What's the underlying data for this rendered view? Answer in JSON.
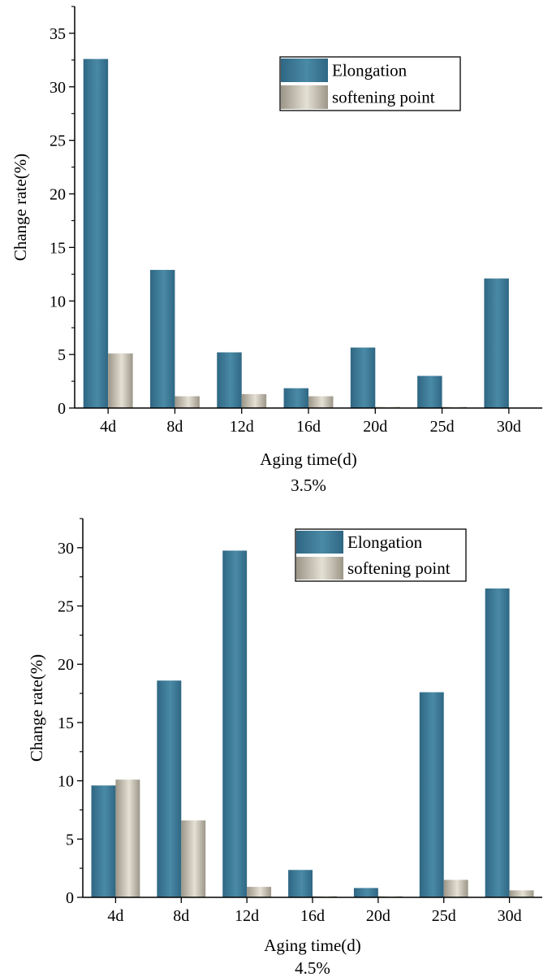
{
  "chart_data": [
    {
      "type": "bar",
      "caption": "3.5%",
      "xlabel": "Aging time(d)",
      "ylabel": "Change rate(%)",
      "ylim": [
        0,
        37.5
      ],
      "yticks": [
        0,
        5,
        10,
        15,
        20,
        25,
        30,
        35
      ],
      "grid": false,
      "legend_position": "top-right",
      "categories": [
        "4d",
        "8d",
        "12d",
        "16d",
        "20d",
        "25d",
        "30d"
      ],
      "series": [
        {
          "name": "Elongation",
          "color": "#3f7a96",
          "values": [
            32.6,
            12.9,
            5.2,
            1.85,
            5.65,
            3.0,
            12.1
          ]
        },
        {
          "name": "softening point",
          "color": "#b7b2a4",
          "values": [
            5.1,
            1.1,
            1.3,
            1.1,
            0.1,
            0.1,
            0.0
          ]
        }
      ]
    },
    {
      "type": "bar",
      "caption": "4.5%",
      "xlabel": "Aging time(d)",
      "ylabel": "Change rate(%)",
      "ylim": [
        0,
        32.5
      ],
      "yticks": [
        0,
        5,
        10,
        15,
        20,
        25,
        30
      ],
      "grid": false,
      "legend_position": "top-right",
      "categories": [
        "4d",
        "8d",
        "12d",
        "16d",
        "20d",
        "25d",
        "30d"
      ],
      "series": [
        {
          "name": "Elongation",
          "color": "#3f7a96",
          "values": [
            9.6,
            18.6,
            29.75,
            2.35,
            0.8,
            17.6,
            26.5
          ]
        },
        {
          "name": "softening point",
          "color": "#b7b2a4",
          "values": [
            10.1,
            6.6,
            0.9,
            0.1,
            0.1,
            1.5,
            0.6
          ]
        }
      ]
    }
  ]
}
